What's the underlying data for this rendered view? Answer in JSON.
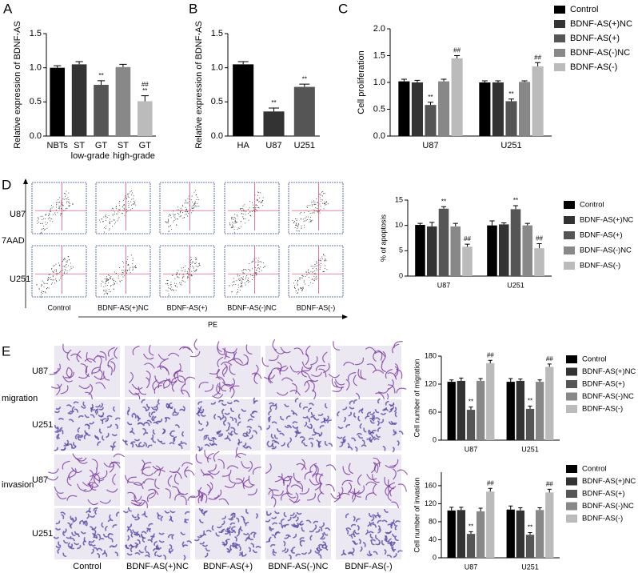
{
  "panels": {
    "letters": [
      "A",
      "B",
      "C",
      "D",
      "E"
    ],
    "flow": {
      "rows": [
        "U87",
        "U251"
      ],
      "columns": [
        "Control",
        "BDNF-AS(+)NC",
        "BDNF-AS(+)",
        "BDNF-AS(-)NC",
        "BDNF-AS(-)"
      ],
      "y_axis": "7AAD",
      "x_axis": "PE"
    },
    "microscopy": {
      "groups": [
        "migration",
        "invasion"
      ],
      "rows": [
        "U87",
        "U251",
        "U87",
        "U251"
      ],
      "columns": [
        "Control",
        "BDNF-AS(+)NC",
        "BDNF-AS(+)",
        "BDNF-AS(-)NC",
        "BDNF-AS(-)"
      ]
    }
  },
  "chart_data": [
    {
      "type": "bar",
      "ylabel": "Relative expression of  BDNF-AS",
      "categories": [
        "NBTs",
        "ST",
        "GT",
        "ST",
        "GT"
      ],
      "x_group_labels": [
        "low-grade",
        "high-grade"
      ],
      "values": [
        1.0,
        1.05,
        0.75,
        1.01,
        0.51
      ],
      "errors": [
        0.03,
        0.04,
        0.06,
        0.04,
        0.08
      ],
      "annotations": [
        [],
        [],
        [
          "**"
        ],
        [],
        [
          "##",
          "**"
        ]
      ],
      "colors": [
        "#000000",
        "#333333",
        "#555555",
        "#888888",
        "#bbbbbb"
      ],
      "ylim": [
        0,
        1.5
      ],
      "yticks": [
        {
          "value": 0,
          "label": "0.0"
        },
        0.5,
        {
          "value": 1,
          "label": "1.0"
        },
        1.5
      ]
    },
    {
      "type": "bar",
      "ylabel": "Relative expression of  BDNF-AS",
      "categories": [
        "HA",
        "U87",
        "U251"
      ],
      "values": [
        1.05,
        0.36,
        0.72
      ],
      "errors": [
        0.04,
        0.05,
        0.04
      ],
      "annotations": [
        [],
        [
          "**"
        ],
        [
          "**"
        ]
      ],
      "colors": [
        "#000000",
        "#333333",
        "#555555"
      ],
      "ylim": [
        0,
        1.5
      ],
      "yticks": [
        {
          "value": 0,
          "label": "0.0"
        },
        0.5,
        {
          "value": 1,
          "label": "1.0"
        },
        1.5
      ]
    },
    {
      "type": "bar",
      "ylabel": "Cell proliferation",
      "categories": [
        "U87",
        "U251"
      ],
      "series": [
        {
          "name": "Control",
          "color": "#000000",
          "values": [
            1.02,
            1.0
          ],
          "errors": [
            0.04,
            0.03
          ],
          "annotations": [
            [],
            []
          ]
        },
        {
          "name": "BDNF-AS(+)NC",
          "color": "#333333",
          "values": [
            1.0,
            1.0
          ],
          "errors": [
            0.04,
            0.03
          ],
          "annotations": [
            [],
            []
          ]
        },
        {
          "name": "BDNF-AS(+)",
          "color": "#555555",
          "values": [
            0.58,
            0.65
          ],
          "errors": [
            0.05,
            0.04
          ],
          "annotations": [
            [
              "**"
            ],
            [
              "**"
            ]
          ]
        },
        {
          "name": "BDNF-AS(-)NC",
          "color": "#888888",
          "values": [
            1.02,
            1.01
          ],
          "errors": [
            0.04,
            0.02
          ],
          "annotations": [
            [],
            []
          ]
        },
        {
          "name": "BDNF-AS(-)",
          "color": "#bbbbbb",
          "values": [
            1.45,
            1.3
          ],
          "errors": [
            0.05,
            0.07
          ],
          "annotations": [
            [
              "##"
            ],
            [
              "##"
            ]
          ]
        }
      ],
      "ylim": [
        0,
        2.0
      ],
      "yticks": [
        {
          "value": 0,
          "label": "0.0"
        },
        0.5,
        {
          "value": 1,
          "label": "1.0"
        },
        1.5,
        {
          "value": 2,
          "label": "2.0"
        }
      ]
    },
    {
      "type": "bar",
      "ylabel": "% of apoptosis",
      "categories": [
        "U87",
        "U251"
      ],
      "series": [
        {
          "name": "Control",
          "color": "#000000",
          "values": [
            10.1,
            10.0
          ],
          "errors": [
            0.3,
            0.9
          ],
          "annotations": [
            [],
            []
          ]
        },
        {
          "name": "BDNF-AS(+)NC",
          "color": "#333333",
          "values": [
            9.8,
            10.2
          ],
          "errors": [
            0.8,
            0.3
          ],
          "annotations": [
            [],
            []
          ]
        },
        {
          "name": "BDNF-AS(+)",
          "color": "#555555",
          "values": [
            13.3,
            13.2
          ],
          "errors": [
            0.4,
            0.7
          ],
          "annotations": [
            [
              "**"
            ],
            [
              "**"
            ]
          ]
        },
        {
          "name": "BDNF-AS(-)NC",
          "color": "#888888",
          "values": [
            9.8,
            10.0
          ],
          "errors": [
            0.6,
            0.4
          ],
          "annotations": [
            [],
            []
          ]
        },
        {
          "name": "BDNF-AS(-)",
          "color": "#bbbbbb",
          "values": [
            5.8,
            5.5
          ],
          "errors": [
            0.5,
            0.9
          ],
          "annotations": [
            [
              "##"
            ],
            [
              "##"
            ]
          ]
        }
      ],
      "ylim": [
        0,
        15
      ],
      "yticks": [
        0,
        5,
        10,
        15
      ]
    },
    {
      "type": "bar",
      "ylabel": "Cell number of migration",
      "categories": [
        "U87",
        "U251"
      ],
      "series": [
        {
          "name": "Control",
          "color": "#000000",
          "values": [
            125,
            125
          ],
          "errors": [
            4,
            7
          ],
          "annotations": [
            [],
            []
          ]
        },
        {
          "name": "BDNF-AS(+)NC",
          "color": "#333333",
          "values": [
            127,
            127
          ],
          "errors": [
            6,
            4
          ],
          "annotations": [
            [],
            []
          ]
        },
        {
          "name": "BDNF-AS(+)",
          "color": "#555555",
          "values": [
            65,
            67
          ],
          "errors": [
            6,
            6
          ],
          "annotations": [
            [
              "**"
            ],
            [
              "**"
            ]
          ]
        },
        {
          "name": "BDNF-AS(-)NC",
          "color": "#888888",
          "values": [
            127,
            125
          ],
          "errors": [
            5,
            4
          ],
          "annotations": [
            [],
            []
          ]
        },
        {
          "name": "BDNF-AS(-)",
          "color": "#bbbbbb",
          "values": [
            165,
            157
          ],
          "errors": [
            6,
            6
          ],
          "annotations": [
            [
              "##"
            ],
            [
              "##"
            ]
          ]
        }
      ],
      "ylim": [
        0,
        180
      ],
      "yticks": [
        0,
        60,
        120,
        180
      ]
    },
    {
      "type": "bar",
      "ylabel": "Cell number of invasion",
      "categories": [
        "U87",
        "U251"
      ],
      "series": [
        {
          "name": "Control",
          "color": "#000000",
          "values": [
            105,
            107
          ],
          "errors": [
            7,
            8
          ],
          "annotations": [
            [],
            []
          ]
        },
        {
          "name": "BDNF-AS(+)NC",
          "color": "#333333",
          "values": [
            106,
            105
          ],
          "errors": [
            6,
            6
          ],
          "annotations": [
            [],
            []
          ]
        },
        {
          "name": "BDNF-AS(+)",
          "color": "#555555",
          "values": [
            53,
            51
          ],
          "errors": [
            5,
            5
          ],
          "annotations": [
            [
              "**"
            ],
            [
              "**"
            ]
          ]
        },
        {
          "name": "BDNF-AS(-)NC",
          "color": "#888888",
          "values": [
            103,
            106
          ],
          "errors": [
            7,
            5
          ],
          "annotations": [
            [],
            []
          ]
        },
        {
          "name": "BDNF-AS(-)",
          "color": "#bbbbbb",
          "values": [
            147,
            145
          ],
          "errors": [
            7,
            7
          ],
          "annotations": [
            [
              "##"
            ],
            [
              "##"
            ]
          ]
        }
      ],
      "ylim": [
        0,
        190
      ],
      "yticks": [
        0,
        40,
        80,
        120,
        160
      ]
    }
  ]
}
